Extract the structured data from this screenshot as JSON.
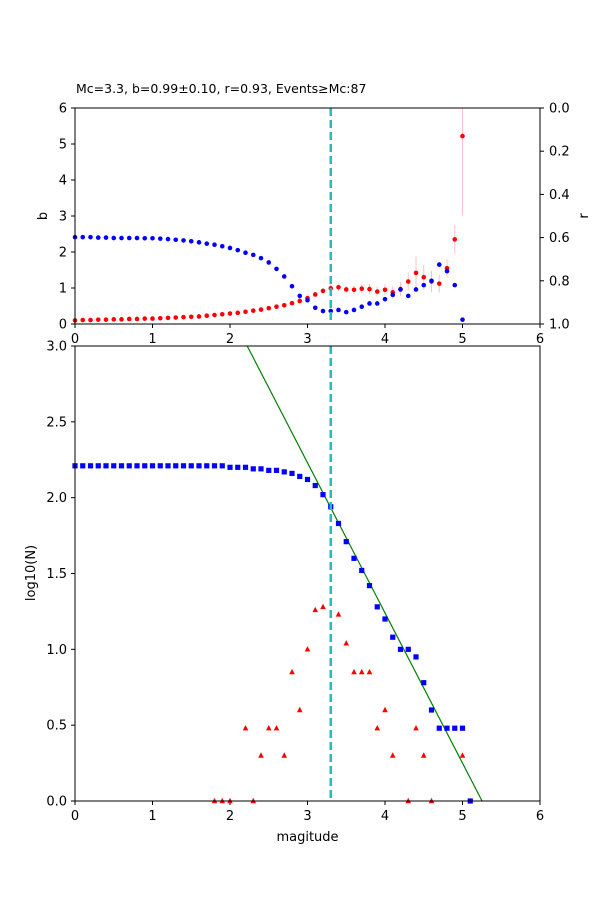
{
  "chart_data": [
    {
      "type": "scatter",
      "title": "Mc=3.3, b=0.99±0.10, r=0.93, Events≥Mc:87",
      "xlabel": "",
      "ylabel": "b",
      "ylabel_right": "r",
      "xlim": [
        0,
        6
      ],
      "ylim": [
        0,
        6
      ],
      "ylim_right": [
        0,
        1
      ],
      "right_axis_inverted": true,
      "x_ticks": [
        "0",
        "1",
        "2",
        "3",
        "4",
        "5",
        "6"
      ],
      "y_ticks": [
        "0",
        "1",
        "2",
        "3",
        "4",
        "5",
        "6"
      ],
      "y_right_ticks": [
        "0.0",
        "0.2",
        "0.4",
        "0.6",
        "0.8",
        "1.0"
      ],
      "grid": false,
      "mc_line": 3.3,
      "colors": {
        "b": "#ff0000",
        "r": "#0000ff",
        "mc": "#1fbfbf",
        "errorbar": "#ffc0cb"
      },
      "series": [
        {
          "key": "b",
          "marker": "circle",
          "color": "#ff0000",
          "x": [
            0,
            0.1,
            0.2,
            0.3,
            0.4,
            0.5,
            0.6,
            0.7,
            0.8,
            0.9,
            1.0,
            1.1,
            1.2,
            1.3,
            1.4,
            1.5,
            1.6,
            1.7,
            1.8,
            1.9,
            2.0,
            2.1,
            2.2,
            2.3,
            2.4,
            2.5,
            2.6,
            2.7,
            2.8,
            2.9,
            3.0,
            3.1,
            3.2,
            3.3,
            3.4,
            3.5,
            3.6,
            3.7,
            3.8,
            3.9,
            4.0,
            4.1,
            4.2,
            4.3,
            4.4,
            4.5,
            4.6,
            4.7,
            4.8,
            4.9,
            5.0
          ],
          "y": [
            0.1,
            0.11,
            0.11,
            0.12,
            0.12,
            0.13,
            0.13,
            0.14,
            0.14,
            0.15,
            0.15,
            0.16,
            0.17,
            0.18,
            0.19,
            0.2,
            0.21,
            0.23,
            0.25,
            0.27,
            0.29,
            0.31,
            0.34,
            0.37,
            0.4,
            0.44,
            0.48,
            0.52,
            0.58,
            0.64,
            0.72,
            0.82,
            0.92,
            0.99,
            1.02,
            0.96,
            0.95,
            0.98,
            0.97,
            0.9,
            0.95,
            0.88,
            0.97,
            1.18,
            1.42,
            1.3,
            1.18,
            1.12,
            1.55,
            2.35,
            5.22
          ],
          "err": [
            0.01,
            0.01,
            0.01,
            0.01,
            0.01,
            0.01,
            0.01,
            0.01,
            0.01,
            0.01,
            0.01,
            0.01,
            0.01,
            0.01,
            0.01,
            0.01,
            0.01,
            0.01,
            0.01,
            0.02,
            0.02,
            0.02,
            0.02,
            0.02,
            0.02,
            0.03,
            0.03,
            0.03,
            0.04,
            0.04,
            0.05,
            0.06,
            0.08,
            0.1,
            0.11,
            0.11,
            0.12,
            0.13,
            0.14,
            0.14,
            0.16,
            0.17,
            0.19,
            0.25,
            0.45,
            0.35,
            0.3,
            0.25,
            0.25,
            0.4,
            2.2
          ]
        },
        {
          "key": "r",
          "marker": "circle",
          "color": "#0000ff",
          "axis": "right",
          "x": [
            0,
            0.1,
            0.2,
            0.3,
            0.4,
            0.5,
            0.6,
            0.7,
            0.8,
            0.9,
            1.0,
            1.1,
            1.2,
            1.3,
            1.4,
            1.5,
            1.6,
            1.7,
            1.8,
            1.9,
            2.0,
            2.1,
            2.2,
            2.3,
            2.4,
            2.5,
            2.6,
            2.7,
            2.8,
            2.9,
            3.0,
            3.1,
            3.2,
            3.3,
            3.4,
            3.5,
            3.6,
            3.7,
            3.8,
            3.9,
            4.0,
            4.1,
            4.2,
            4.3,
            4.4,
            4.5,
            4.6,
            4.7,
            4.8,
            4.9,
            5.0
          ],
          "y": [
            0.598,
            0.598,
            0.598,
            0.6,
            0.6,
            0.602,
            0.602,
            0.602,
            0.602,
            0.603,
            0.603,
            0.605,
            0.607,
            0.61,
            0.613,
            0.617,
            0.622,
            0.628,
            0.633,
            0.64,
            0.648,
            0.658,
            0.67,
            0.68,
            0.695,
            0.715,
            0.745,
            0.78,
            0.825,
            0.87,
            0.89,
            0.925,
            0.94,
            0.94,
            0.935,
            0.945,
            0.935,
            0.92,
            0.905,
            0.905,
            0.885,
            0.865,
            0.84,
            0.87,
            0.84,
            0.82,
            0.8,
            0.725,
            0.755,
            0.82,
            0.98
          ]
        }
      ]
    },
    {
      "type": "scatter",
      "title": "",
      "xlabel": "magitude",
      "ylabel": "log10(N)",
      "xlim": [
        0,
        6
      ],
      "ylim": [
        0,
        3
      ],
      "x_ticks": [
        "0",
        "1",
        "2",
        "3",
        "4",
        "5",
        "6"
      ],
      "y_ticks": [
        "0.0",
        "0.5",
        "1.0",
        "1.5",
        "2.0",
        "2.5",
        "3.0"
      ],
      "grid": false,
      "mc_line": 3.3,
      "colors": {
        "cumulative": "#0000ff",
        "noncumulative": "#ff0000",
        "fit": "#008000",
        "mc": "#1fbfbf"
      },
      "fit_line": {
        "a": 5.2,
        "b": 0.99
      },
      "series": [
        {
          "key": "cumulative",
          "marker": "square",
          "color": "#0000ff",
          "x": [
            0,
            0.1,
            0.2,
            0.3,
            0.4,
            0.5,
            0.6,
            0.7,
            0.8,
            0.9,
            1.0,
            1.1,
            1.2,
            1.3,
            1.4,
            1.5,
            1.6,
            1.7,
            1.8,
            1.9,
            2.0,
            2.1,
            2.2,
            2.3,
            2.4,
            2.5,
            2.6,
            2.7,
            2.8,
            2.9,
            3.0,
            3.1,
            3.2,
            3.3,
            3.4,
            3.5,
            3.6,
            3.7,
            3.8,
            3.9,
            4.0,
            4.1,
            4.2,
            4.3,
            4.4,
            4.5,
            4.6,
            4.7,
            4.8,
            4.9,
            5.0,
            5.1
          ],
          "y": [
            2.21,
            2.21,
            2.21,
            2.21,
            2.21,
            2.21,
            2.21,
            2.21,
            2.21,
            2.21,
            2.21,
            2.21,
            2.21,
            2.21,
            2.21,
            2.21,
            2.21,
            2.21,
            2.21,
            2.21,
            2.2,
            2.2,
            2.2,
            2.19,
            2.19,
            2.18,
            2.18,
            2.17,
            2.16,
            2.14,
            2.12,
            2.08,
            2.02,
            1.94,
            1.83,
            1.71,
            1.6,
            1.52,
            1.42,
            1.28,
            1.2,
            1.08,
            1.0,
            1.0,
            0.95,
            0.78,
            0.6,
            0.48,
            0.48,
            0.48,
            0.48,
            0.0
          ]
        },
        {
          "key": "noncumulative",
          "marker": "triangle",
          "color": "#ff0000",
          "x": [
            1.8,
            1.9,
            2.0,
            2.2,
            2.3,
            2.4,
            2.5,
            2.6,
            2.7,
            2.8,
            2.9,
            3.0,
            3.1,
            3.2,
            3.4,
            3.5,
            3.6,
            3.7,
            3.8,
            3.9,
            4.0,
            4.1,
            4.3,
            4.4,
            4.5,
            4.6,
            5.0
          ],
          "y": [
            0.0,
            0.0,
            0.0,
            0.48,
            0.0,
            0.3,
            0.48,
            0.48,
            0.3,
            0.85,
            0.6,
            1.0,
            1.26,
            1.28,
            1.23,
            1.04,
            0.85,
            0.85,
            0.85,
            0.48,
            0.6,
            0.3,
            0.0,
            0.48,
            0.3,
            0.0,
            0.3
          ]
        }
      ]
    }
  ]
}
